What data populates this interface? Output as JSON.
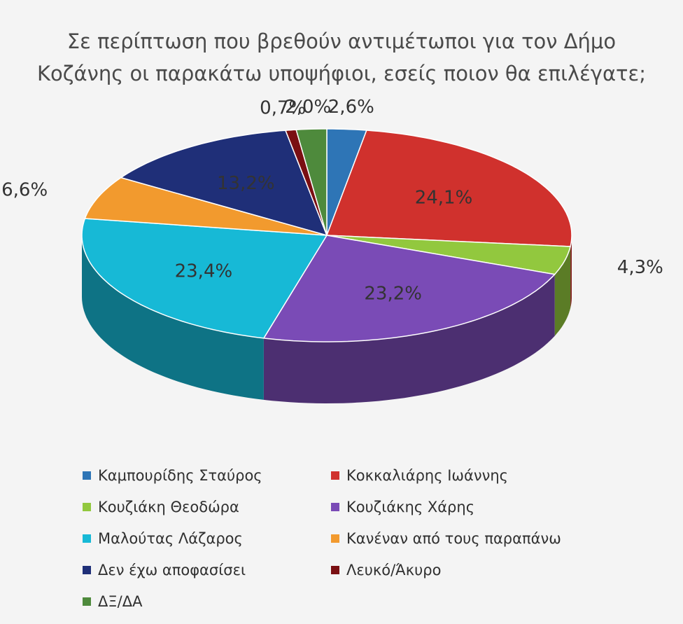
{
  "chart_data": {
    "type": "pie",
    "title_lines": [
      "Σε περίπτωση που βρεθούν αντιμέτωποι για τον Δήμο",
      "Κοζάνης οι παρακάτω υποψήφιοι, εσείς ποιον θα επιλέγατε;"
    ],
    "style": "3d",
    "legend_position": "bottom",
    "slices": [
      {
        "name": "Καμπουρίδης Σταύρος",
        "value": 2.6,
        "label": "2,6%",
        "color": "#2e75b6"
      },
      {
        "name": "Κοκκαλιάρης Ιωάννης",
        "value": 24.1,
        "label": "24,1%",
        "color": "#d0312d"
      },
      {
        "name": "Κουζιάκη Θεοδώρα",
        "value": 4.3,
        "label": "4,3%",
        "color": "#92c83e"
      },
      {
        "name": "Κουζιάκης Χάρης",
        "value": 23.2,
        "label": "23,2%",
        "color": "#7a4bb6"
      },
      {
        "name": "Μαλούτας Λάζαρος",
        "value": 23.4,
        "label": "23,4%",
        "color": "#17b9d6"
      },
      {
        "name": "Κανέναν από τους παραπάνω",
        "value": 6.6,
        "label": "6,6%",
        "color": "#f29a2e"
      },
      {
        "name": "Δεν έχω αποφασίσει",
        "value": 13.2,
        "label": "13,2%",
        "color": "#1f2f78"
      },
      {
        "name": "Λευκό/Άκυρο",
        "value": 0.7,
        "label": "0,7%",
        "color": "#7a0f12"
      },
      {
        "name": "ΔΞ/ΔΑ",
        "value": 2.0,
        "label": "2,0%",
        "color": "#4e8a3c"
      }
    ]
  }
}
